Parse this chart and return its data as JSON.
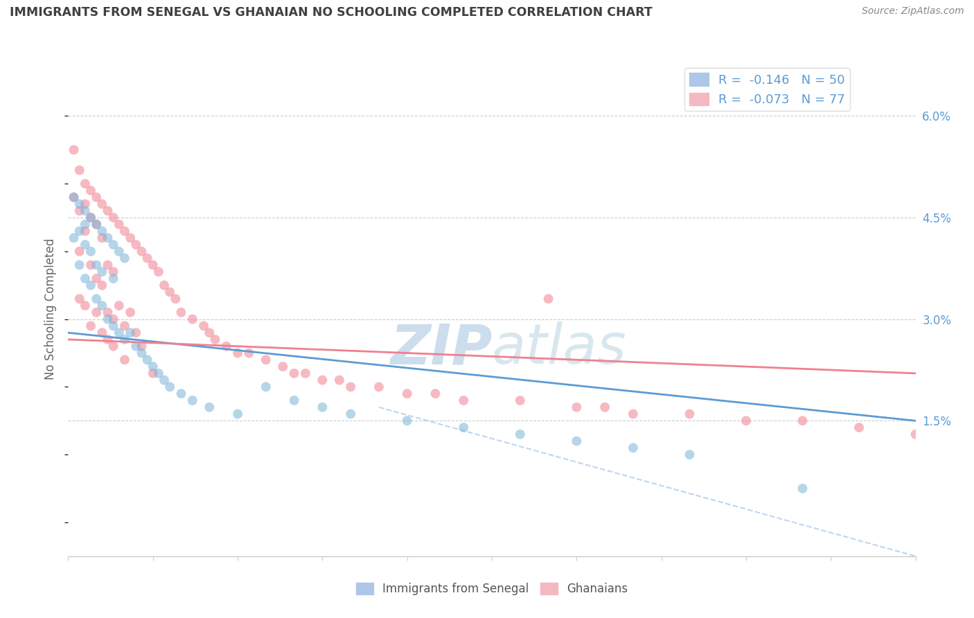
{
  "title": "IMMIGRANTS FROM SENEGAL VS GHANAIAN NO SCHOOLING COMPLETED CORRELATION CHART",
  "source_text": "Source: ZipAtlas.com",
  "ylabel": "No Schooling Completed",
  "right_yticks": [
    "6.0%",
    "4.5%",
    "3.0%",
    "1.5%"
  ],
  "right_ytick_vals": [
    0.06,
    0.045,
    0.03,
    0.015
  ],
  "legend1_label": "R =  -0.146   N = 50",
  "legend2_label": "R =  -0.073   N = 77",
  "legend1_color": "#aec6e8",
  "legend2_color": "#f4b8c1",
  "scatter1_color": "#7ab3d8",
  "scatter2_color": "#f08090",
  "line1_color": "#5b9bd5",
  "line2_color": "#f08090",
  "dashed_line_color": "#aaccee",
  "title_color": "#404040",
  "axis_color": "#5b9bd5",
  "watermark_color": "#ccdded",
  "xlim": [
    0.0,
    0.15
  ],
  "ylim": [
    -0.005,
    0.068
  ],
  "blue_scatter_x": [
    0.001,
    0.001,
    0.002,
    0.002,
    0.002,
    0.003,
    0.003,
    0.003,
    0.003,
    0.004,
    0.004,
    0.004,
    0.005,
    0.005,
    0.005,
    0.006,
    0.006,
    0.006,
    0.007,
    0.007,
    0.008,
    0.008,
    0.008,
    0.009,
    0.009,
    0.01,
    0.01,
    0.011,
    0.012,
    0.013,
    0.014,
    0.015,
    0.016,
    0.017,
    0.018,
    0.02,
    0.022,
    0.025,
    0.03,
    0.035,
    0.04,
    0.045,
    0.05,
    0.06,
    0.07,
    0.08,
    0.09,
    0.1,
    0.11,
    0.13
  ],
  "blue_scatter_y": [
    0.048,
    0.042,
    0.047,
    0.043,
    0.038,
    0.046,
    0.044,
    0.041,
    0.036,
    0.045,
    0.04,
    0.035,
    0.044,
    0.038,
    0.033,
    0.043,
    0.037,
    0.032,
    0.042,
    0.03,
    0.041,
    0.036,
    0.029,
    0.04,
    0.028,
    0.039,
    0.027,
    0.028,
    0.026,
    0.025,
    0.024,
    0.023,
    0.022,
    0.021,
    0.02,
    0.019,
    0.018,
    0.017,
    0.016,
    0.02,
    0.018,
    0.017,
    0.016,
    0.015,
    0.014,
    0.013,
    0.012,
    0.011,
    0.01,
    0.005
  ],
  "pink_scatter_x": [
    0.001,
    0.001,
    0.002,
    0.002,
    0.002,
    0.003,
    0.003,
    0.003,
    0.004,
    0.004,
    0.004,
    0.005,
    0.005,
    0.005,
    0.006,
    0.006,
    0.006,
    0.007,
    0.007,
    0.007,
    0.008,
    0.008,
    0.008,
    0.009,
    0.009,
    0.01,
    0.01,
    0.011,
    0.011,
    0.012,
    0.012,
    0.013,
    0.013,
    0.014,
    0.015,
    0.016,
    0.017,
    0.018,
    0.019,
    0.02,
    0.022,
    0.024,
    0.025,
    0.026,
    0.028,
    0.03,
    0.032,
    0.035,
    0.038,
    0.04,
    0.042,
    0.045,
    0.048,
    0.05,
    0.055,
    0.06,
    0.065,
    0.07,
    0.08,
    0.085,
    0.09,
    0.095,
    0.1,
    0.11,
    0.12,
    0.13,
    0.14,
    0.15,
    0.002,
    0.003,
    0.004,
    0.005,
    0.006,
    0.007,
    0.008,
    0.01,
    0.015
  ],
  "pink_scatter_y": [
    0.055,
    0.048,
    0.052,
    0.046,
    0.04,
    0.05,
    0.047,
    0.043,
    0.049,
    0.045,
    0.038,
    0.048,
    0.044,
    0.036,
    0.047,
    0.042,
    0.035,
    0.046,
    0.038,
    0.031,
    0.045,
    0.037,
    0.03,
    0.044,
    0.032,
    0.043,
    0.029,
    0.042,
    0.031,
    0.041,
    0.028,
    0.04,
    0.026,
    0.039,
    0.038,
    0.037,
    0.035,
    0.034,
    0.033,
    0.031,
    0.03,
    0.029,
    0.028,
    0.027,
    0.026,
    0.025,
    0.025,
    0.024,
    0.023,
    0.022,
    0.022,
    0.021,
    0.021,
    0.02,
    0.02,
    0.019,
    0.019,
    0.018,
    0.018,
    0.033,
    0.017,
    0.017,
    0.016,
    0.016,
    0.015,
    0.015,
    0.014,
    0.013,
    0.033,
    0.032,
    0.029,
    0.031,
    0.028,
    0.027,
    0.026,
    0.024,
    0.022
  ],
  "blue_line": [
    [
      0.0,
      0.15
    ],
    [
      0.028,
      0.015
    ]
  ],
  "pink_line": [
    [
      0.0,
      0.15
    ],
    [
      0.027,
      0.022
    ]
  ],
  "dash_line": [
    [
      0.055,
      0.15
    ],
    [
      0.017,
      -0.005
    ]
  ]
}
